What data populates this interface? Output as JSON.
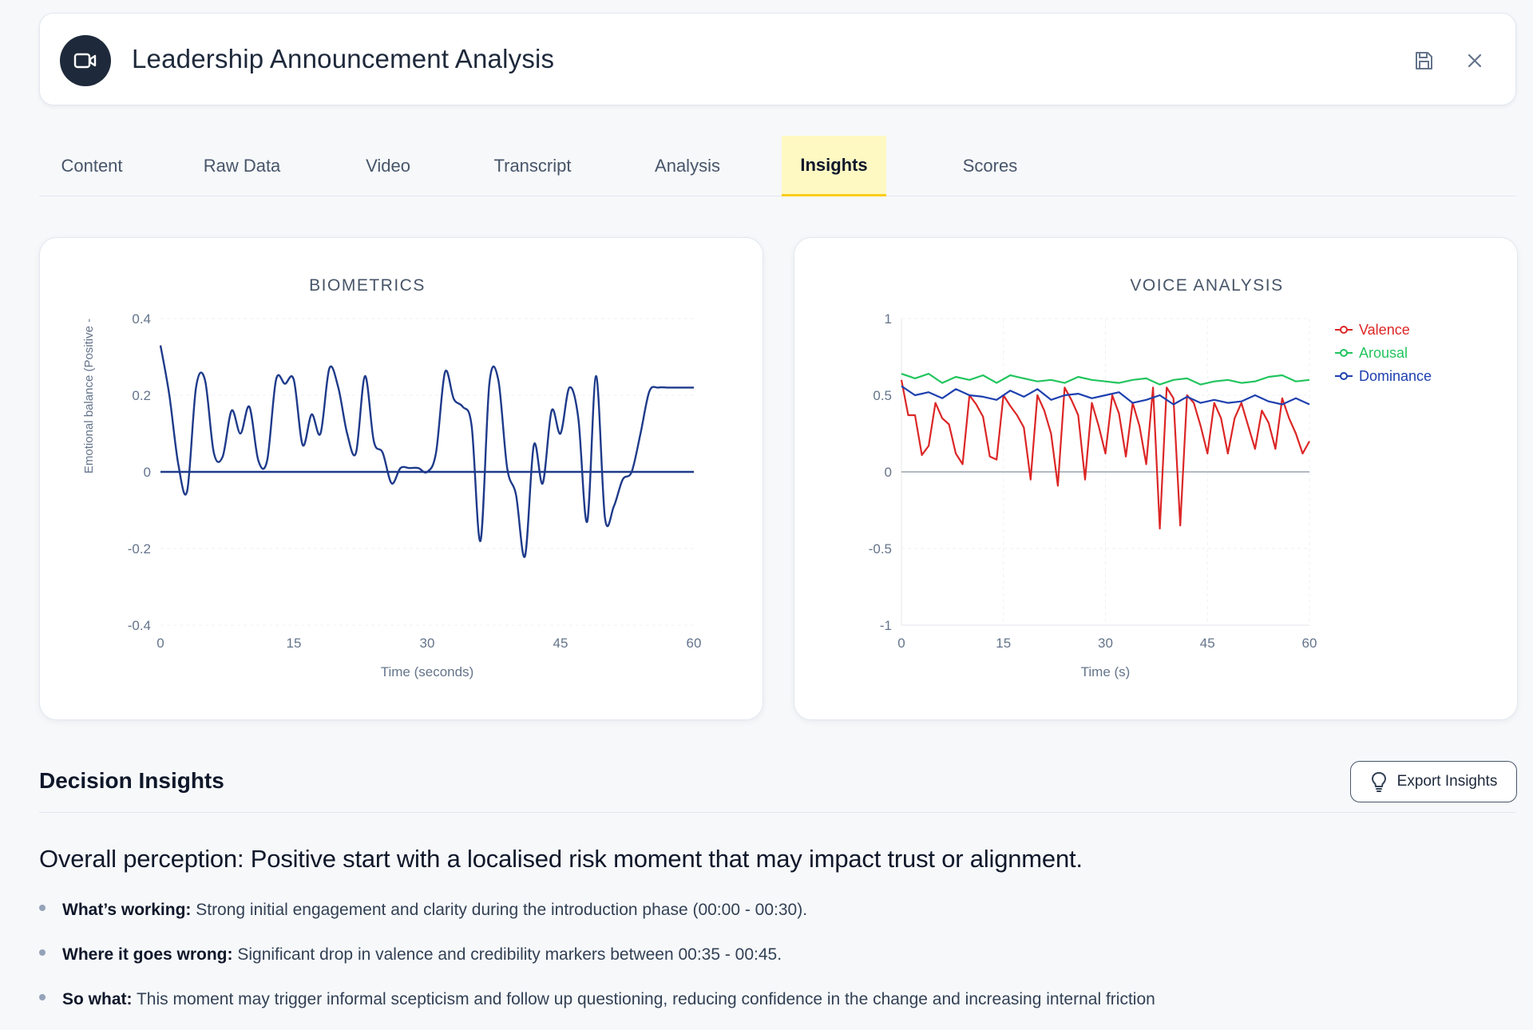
{
  "header": {
    "title": "Leadership Announcement Analysis",
    "icon": "video-camera-icon",
    "actions": [
      {
        "name": "save",
        "icon": "save-icon"
      },
      {
        "name": "close",
        "icon": "close-icon"
      }
    ]
  },
  "tabs": [
    {
      "label": "Content",
      "active": false
    },
    {
      "label": "Raw Data",
      "active": false
    },
    {
      "label": "Video",
      "active": false
    },
    {
      "label": "Transcript",
      "active": false
    },
    {
      "label": "Analysis",
      "active": false
    },
    {
      "label": "Insights",
      "active": true
    },
    {
      "label": "Scores",
      "active": false
    }
  ],
  "colors": {
    "accent_tab": "#fef9c3",
    "accent_tab_border": "#facc15",
    "biometrics_line": "#1e3a8a",
    "valence": "#dc2626",
    "arousal": "#22c55e",
    "dominance": "#1e40af"
  },
  "chart_data": [
    {
      "type": "line",
      "title": "BIOMETRICS",
      "xlabel": "Time (seconds)",
      "ylabel": "Emotional balance (Positive -",
      "xlim": [
        0,
        60
      ],
      "ylim": [
        -0.4,
        0.4
      ],
      "xticks": [
        "0",
        "15",
        "30",
        "45",
        "60"
      ],
      "yticks": [
        "0.4",
        "0.2",
        "0",
        "-0.2",
        "-0.4"
      ],
      "grid": true,
      "baseline": 0,
      "series": [
        {
          "x": [
            0,
            1,
            2,
            3,
            4,
            5,
            6,
            7,
            8,
            9,
            10,
            11,
            12,
            13,
            14,
            15,
            16,
            17,
            18,
            19,
            20,
            21,
            22,
            23,
            24,
            25,
            26,
            27,
            28,
            29,
            30,
            31,
            32,
            33,
            34,
            35,
            36,
            37,
            38,
            39,
            40,
            41,
            42,
            43,
            44,
            45,
            46,
            47,
            48,
            49,
            50,
            51,
            52,
            53,
            54,
            55,
            56,
            57,
            58,
            59,
            60
          ],
          "y": [
            0.33,
            0.2,
            0.02,
            -0.05,
            0.22,
            0.24,
            0.05,
            0.04,
            0.16,
            0.1,
            0.17,
            0.03,
            0.03,
            0.24,
            0.23,
            0.24,
            0.07,
            0.15,
            0.1,
            0.27,
            0.22,
            0.1,
            0.05,
            0.25,
            0.08,
            0.05,
            -0.03,
            0.01,
            0.01,
            0.01,
            0.0,
            0.05,
            0.26,
            0.19,
            0.17,
            0.12,
            -0.18,
            0.23,
            0.24,
            0.01,
            -0.06,
            -0.22,
            0.07,
            -0.03,
            0.16,
            0.1,
            0.22,
            0.14,
            -0.13,
            0.25,
            -0.12,
            -0.09,
            -0.02,
            0.0,
            0.1,
            0.21,
            0.22,
            0.22,
            0.22,
            0.22,
            0.22
          ]
        }
      ]
    },
    {
      "type": "line",
      "title": "VOICE ANALYSIS",
      "xlabel": "Time (s)",
      "ylabel": "",
      "xlim": [
        0,
        60
      ],
      "ylim": [
        -1,
        1
      ],
      "xticks": [
        "0",
        "15",
        "30",
        "45",
        "60"
      ],
      "yticks": [
        "1",
        "0.5",
        "0",
        "-0.5",
        "-1"
      ],
      "grid": true,
      "legend": "top-right",
      "baseline": 0,
      "series": [
        {
          "name": "Valence",
          "color": "#dc2626",
          "x": [
            0,
            1,
            2,
            3,
            4,
            5,
            6,
            7,
            8,
            9,
            10,
            11,
            12,
            13,
            14,
            15,
            16,
            17,
            18,
            19,
            20,
            21,
            22,
            23,
            24,
            25,
            26,
            27,
            28,
            29,
            30,
            31,
            32,
            33,
            34,
            35,
            36,
            37,
            38,
            39,
            40,
            41,
            42,
            43,
            44,
            45,
            46,
            47,
            48,
            49,
            50,
            51,
            52,
            53,
            54,
            55,
            56,
            57,
            58,
            59,
            60
          ],
          "y": [
            0.6,
            0.37,
            0.37,
            0.11,
            0.17,
            0.45,
            0.35,
            0.31,
            0.12,
            0.05,
            0.5,
            0.44,
            0.36,
            0.1,
            0.08,
            0.5,
            0.43,
            0.37,
            0.29,
            -0.05,
            0.5,
            0.4,
            0.25,
            -0.09,
            0.55,
            0.47,
            0.37,
            -0.05,
            0.45,
            0.3,
            0.12,
            0.5,
            0.38,
            0.1,
            0.45,
            0.3,
            0.05,
            0.55,
            -0.37,
            0.55,
            0.48,
            -0.35,
            0.5,
            0.45,
            0.3,
            0.12,
            0.45,
            0.35,
            0.12,
            0.35,
            0.45,
            0.3,
            0.15,
            0.4,
            0.32,
            0.15,
            0.48,
            0.35,
            0.25,
            0.12,
            0.2
          ]
        },
        {
          "name": "Arousal",
          "color": "#22c55e",
          "x": [
            0,
            2,
            4,
            6,
            8,
            10,
            12,
            14,
            16,
            18,
            20,
            22,
            24,
            26,
            28,
            30,
            32,
            34,
            36,
            38,
            40,
            42,
            44,
            46,
            48,
            50,
            52,
            54,
            56,
            58,
            60
          ],
          "y": [
            0.64,
            0.61,
            0.64,
            0.58,
            0.62,
            0.6,
            0.63,
            0.58,
            0.63,
            0.61,
            0.59,
            0.6,
            0.58,
            0.62,
            0.6,
            0.59,
            0.58,
            0.6,
            0.61,
            0.57,
            0.6,
            0.61,
            0.57,
            0.59,
            0.6,
            0.58,
            0.59,
            0.62,
            0.63,
            0.59,
            0.6
          ]
        },
        {
          "name": "Dominance",
          "color": "#1e40af",
          "x": [
            0,
            2,
            4,
            6,
            8,
            10,
            12,
            14,
            16,
            18,
            20,
            22,
            24,
            26,
            28,
            30,
            32,
            34,
            36,
            38,
            40,
            42,
            44,
            46,
            48,
            50,
            52,
            54,
            56,
            58,
            60
          ],
          "y": [
            0.56,
            0.5,
            0.52,
            0.48,
            0.54,
            0.5,
            0.49,
            0.47,
            0.53,
            0.49,
            0.54,
            0.47,
            0.5,
            0.51,
            0.48,
            0.5,
            0.52,
            0.45,
            0.47,
            0.5,
            0.44,
            0.49,
            0.45,
            0.47,
            0.45,
            0.46,
            0.5,
            0.46,
            0.44,
            0.48,
            0.44
          ]
        }
      ]
    }
  ],
  "insights": {
    "section_title": "Decision Insights",
    "export_label": "Export Insights",
    "headline": "Overall perception: Positive start with a localised risk moment that may impact trust or alignment.",
    "bullets": [
      {
        "label": "What’s working:",
        "text": " Strong initial engagement and clarity during the introduction phase (00:00 - 00:30)."
      },
      {
        "label": "Where it goes wrong:",
        "text": " Significant drop in valence and credibility markers between 00:35 - 00:45."
      },
      {
        "label": "So what:",
        "text": " This moment may trigger informal scepticism and follow up questioning, reducing confidence in the change and increasing internal friction"
      }
    ]
  }
}
